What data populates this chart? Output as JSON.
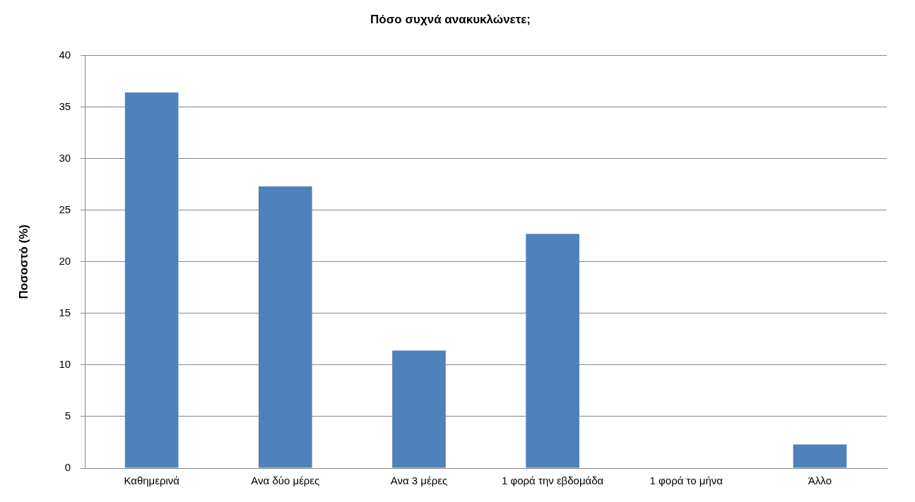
{
  "chart_data": {
    "type": "bar",
    "title": "Πόσο συχνά ανακυκλώνετε;",
    "ylabel": "Ποσοστό (%)",
    "categories": [
      "Καθημερινά",
      "Ανα δύο μέρες",
      "Ανα 3 μέρες",
      "1 φορά την εβδομάδα",
      "1 φορά το μήνα",
      "Άλλο"
    ],
    "values": [
      36.4,
      27.3,
      11.4,
      22.7,
      0,
      2.3
    ],
    "color": "#4f81bd",
    "ylim": [
      0,
      40
    ],
    "yticks": [
      0,
      5,
      10,
      15,
      20,
      25,
      30,
      35,
      40
    ],
    "grid": "y",
    "legend": false
  }
}
